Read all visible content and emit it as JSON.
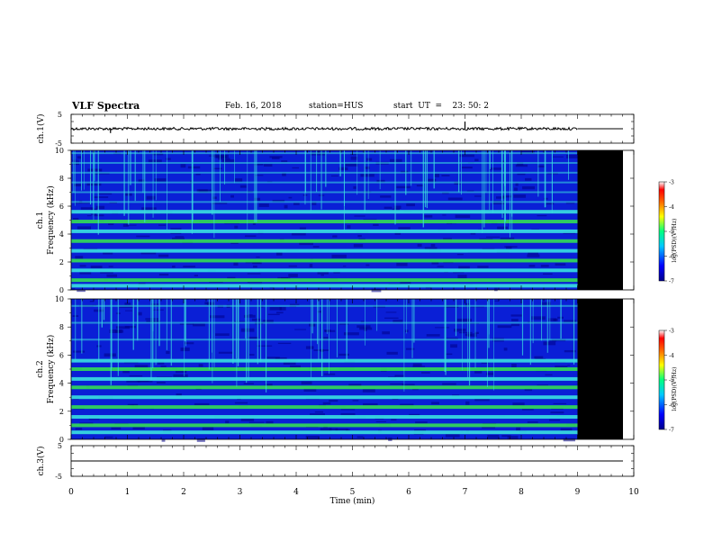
{
  "header": {
    "title": "VLF Spectra",
    "date": "Feb. 16, 2018",
    "station": "station=HUS",
    "start": "start  UT  =    23: 50: 2"
  },
  "chart_data": [
    {
      "type": "line",
      "panel": "ch1-waveform",
      "ylabel": "ch.1(V)",
      "ylim": [
        -5,
        5
      ],
      "yticks": [
        "5",
        "-5"
      ],
      "x_range_min": [
        0,
        10
      ],
      "data_end_min": 9.0,
      "baseline_v": 0,
      "spikes": [
        {
          "t": 0.7,
          "v": -1.5
        },
        {
          "t": 7.0,
          "v": 2.5
        }
      ]
    },
    {
      "type": "heatmap",
      "panel": "ch1-spectrogram",
      "channel_label": "ch.1",
      "ylabel": "Frequency (kHz)",
      "ylim": [
        0,
        10
      ],
      "yticks": [
        "0",
        "2",
        "4",
        "6",
        "8",
        "10"
      ],
      "data_end_min": 9.0,
      "bright_bands_khz": [
        0.3,
        0.7,
        1.4,
        2.1,
        2.8,
        3.5,
        4.2,
        4.9,
        5.6
      ],
      "upper_bands_khz": [
        6.3,
        7.0,
        7.7,
        8.4,
        9.1,
        9.8
      ],
      "colorbar": {
        "label": "log(PSD)(V²/Hz)",
        "range": [
          -7,
          -3
        ],
        "ticks": [
          "-3",
          "-4",
          "-5",
          "-6",
          "-7"
        ]
      }
    },
    {
      "type": "heatmap",
      "panel": "ch2-spectrogram",
      "channel_label": "ch.2",
      "ylabel": "Frequency (kHz)",
      "ylim": [
        0,
        10
      ],
      "yticks": [
        "0",
        "2",
        "4",
        "6",
        "8",
        "10"
      ],
      "data_end_min": 9.0,
      "bright_bands_khz": [
        0.5,
        1.0,
        1.6,
        2.3,
        3.0,
        3.7,
        4.3,
        5.0,
        5.6
      ],
      "upper_bands_khz": [
        7.1,
        8.3,
        9.5
      ],
      "colorbar": {
        "label": "log(PSD)(V²/Hz)",
        "range": [
          -7,
          -3
        ],
        "ticks": [
          "-3",
          "-4",
          "-5",
          "-6",
          "-7"
        ]
      }
    },
    {
      "type": "line",
      "panel": "ch3-waveform",
      "ylabel": "ch.3(V)",
      "ylim": [
        -5,
        5
      ],
      "yticks": [
        "5",
        "-5"
      ],
      "x_range_min": [
        0,
        10
      ],
      "baseline_v": 0
    }
  ],
  "xaxis": {
    "label": "Time  (min)",
    "range": [
      0,
      10
    ],
    "ticks": [
      "0",
      "1",
      "2",
      "3",
      "4",
      "5",
      "6",
      "7",
      "8",
      "9",
      "10"
    ]
  },
  "colors": {
    "background": "#ffffff",
    "nodata": "#000000",
    "trace": "#000000",
    "deep": "#00008b",
    "blue": "#0a1fd6",
    "cyan": "#3ae0e0",
    "green": "#33dd55"
  }
}
